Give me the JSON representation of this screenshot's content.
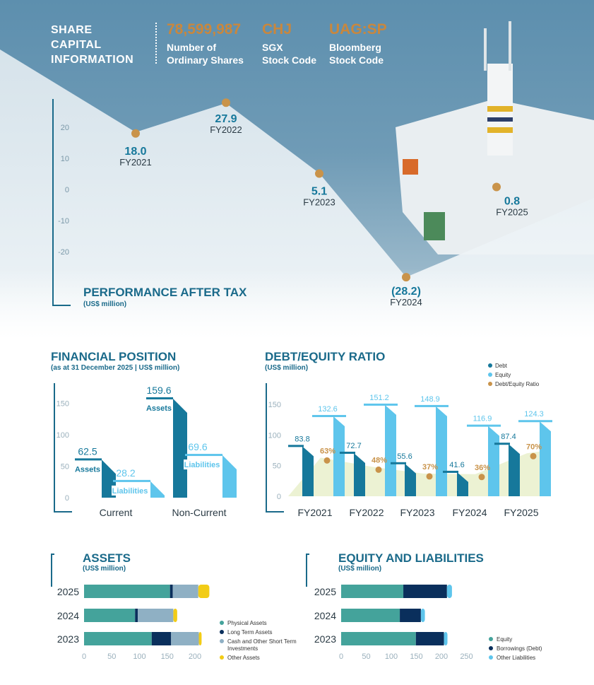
{
  "header": {
    "title_lines": [
      "SHARE",
      "CAPITAL",
      "INFORMATION"
    ],
    "items": [
      {
        "value": "78,599,987",
        "caption_lines": [
          "Number of",
          "Ordinary Shares"
        ]
      },
      {
        "value": "CHJ",
        "caption_lines": [
          "SGX",
          "Stock Code"
        ]
      },
      {
        "value": "UAG:SP",
        "caption_lines": [
          "Bloomberg",
          "Stock Code"
        ]
      }
    ]
  },
  "chart_data": [
    {
      "type": "line",
      "title": "PERFORMANCE AFTER TAX",
      "subtitle": "(US$ million)",
      "ylim": [
        -30,
        30
      ],
      "yticks": [
        20,
        10,
        0,
        -10,
        -20
      ],
      "x": [
        "FY2021",
        "FY2022",
        "FY2023",
        "FY2024",
        "FY2025"
      ],
      "values": [
        18.0,
        27.9,
        5.1,
        -28.2,
        0.8
      ],
      "value_labels": [
        "18.0",
        "27.9",
        "5.1",
        "(28.2)",
        "0.8"
      ]
    },
    {
      "type": "bar",
      "title": "FINANCIAL POSITION",
      "subtitle": "(as at 31 December 2025 | US$ million)",
      "categories": [
        "Current",
        "Non-Current"
      ],
      "ylim": [
        0,
        160
      ],
      "yticks": [
        150,
        100,
        50,
        0
      ],
      "series": [
        {
          "name": "Assets",
          "values": [
            62.5,
            159.6
          ]
        },
        {
          "name": "Liabilities",
          "values": [
            28.2,
            69.6
          ]
        }
      ]
    },
    {
      "type": "bar",
      "title": "DEBT/EQUITY RATIO",
      "subtitle": "(US$ million)",
      "categories": [
        "FY2021",
        "FY2022",
        "FY2023",
        "FY2024",
        "FY2025"
      ],
      "ylim": [
        0,
        160
      ],
      "yticks": [
        150,
        100,
        50,
        0
      ],
      "series": [
        {
          "name": "Debt",
          "values": [
            83.8,
            72.7,
            55.6,
            41.6,
            87.4
          ]
        },
        {
          "name": "Equity",
          "values": [
            132.6,
            151.2,
            148.9,
            116.9,
            124.3
          ]
        },
        {
          "name": "Debt/Equity Ratio",
          "values": [
            63,
            48,
            37,
            36,
            70
          ],
          "labels": [
            "63%",
            "48%",
            "37%",
            "36%",
            "70%"
          ]
        }
      ],
      "legend_position": "top-right"
    },
    {
      "type": "bar",
      "orientation": "horizontal",
      "stacked": true,
      "title": "ASSETS",
      "subtitle": "(US$ million)",
      "categories": [
        "2025",
        "2024",
        "2023"
      ],
      "xlim": [
        0,
        220
      ],
      "xticks": [
        0,
        50,
        100,
        150,
        200
      ],
      "series": [
        {
          "name": "Physical Assets",
          "values": [
            155,
            92,
            122
          ]
        },
        {
          "name": "Long Term Assets",
          "values": [
            5,
            5,
            35
          ]
        },
        {
          "name": "Cash and Other Short Term Investments",
          "values": [
            46,
            64,
            50
          ]
        },
        {
          "name": "Other Assets",
          "values": [
            20,
            7,
            5
          ]
        }
      ],
      "legend_position": "right"
    },
    {
      "type": "bar",
      "orientation": "horizontal",
      "stacked": true,
      "title": "EQUITY AND LIABILITIES",
      "subtitle": "(US$ million)",
      "categories": [
        "2025",
        "2024",
        "2023"
      ],
      "xlim": [
        0,
        260
      ],
      "xticks": [
        0,
        50,
        100,
        150,
        200,
        250
      ],
      "series": [
        {
          "name": "Equity",
          "values": [
            124,
            117,
            149
          ]
        },
        {
          "name": "Borrowings (Debt)",
          "values": [
            87,
            42,
            56
          ]
        },
        {
          "name": "Other Liabilities",
          "values": [
            10,
            8,
            7
          ]
        }
      ],
      "legend_position": "right"
    }
  ],
  "colors": {
    "teal_dark": "#16789b",
    "sky": "#5ec5ec",
    "gold": "#c9934a",
    "title_blue": "#1a6a8a",
    "stack_teal": "#44a39b",
    "stack_navy": "#0a2f5c",
    "stack_grey": "#8fb0c4",
    "stack_yellow": "#f2cc16"
  }
}
